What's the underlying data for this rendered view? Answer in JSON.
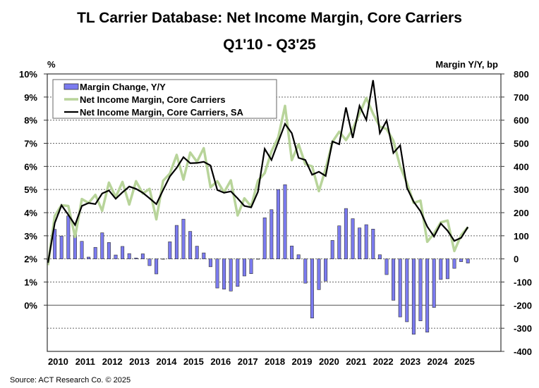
{
  "chart_data": {
    "type": "bar+line",
    "title": "TL Carrier Database: Net Income Margin, Core Carriers",
    "subtitle": "Q1'10 - Q3'25",
    "ylabel_left": "%",
    "ylabel_right": "Margin Y/Y, bp",
    "ylim_left": [
      -2,
      10
    ],
    "ylim_right": [
      -400,
      800
    ],
    "left_ticks": [
      "10%",
      "9%",
      "8%",
      "7%",
      "6%",
      "5%",
      "4%",
      "3%",
      "2%",
      "1%",
      "0%"
    ],
    "left_tick_values": [
      10,
      9,
      8,
      7,
      6,
      5,
      4,
      3,
      2,
      1,
      0
    ],
    "right_ticks": [
      "800",
      "700",
      "600",
      "500",
      "400",
      "300",
      "200",
      "100",
      "0",
      "-100",
      "-200",
      "-300",
      "-400"
    ],
    "right_tick_values": [
      800,
      700,
      600,
      500,
      400,
      300,
      200,
      100,
      0,
      -100,
      -200,
      -300,
      -400
    ],
    "x_labels": [
      "2010",
      "2011",
      "2012",
      "2013",
      "2014",
      "2015",
      "2016",
      "2017",
      "2018",
      "2019",
      "2020",
      "2021",
      "2022",
      "2023",
      "2024",
      "2025"
    ],
    "grid": "dashed horizontal",
    "legend_position": "top-left",
    "series": [
      {
        "name": "Margin Change, Y/Y",
        "type": "bar",
        "axis": "right",
        "color": "#7b7bf0",
        "values": [
          0,
          128,
          99,
          186,
          120,
          76,
          8,
          50,
          113,
          71,
          17,
          54,
          23,
          4,
          22,
          -29,
          -65,
          0,
          74,
          145,
          172,
          119,
          55,
          26,
          -34,
          -126,
          -131,
          -139,
          -119,
          -74,
          -64,
          0,
          178,
          213,
          300,
          321,
          56,
          18,
          -105,
          -256,
          -133,
          -96,
          80,
          143,
          218,
          174,
          134,
          148,
          129,
          18,
          -68,
          -179,
          -251,
          -272,
          -326,
          -268,
          -317,
          -210,
          -89,
          -86,
          -41,
          -12,
          -18
        ]
      },
      {
        "name": "Net Income Margin, Core Carriers",
        "type": "line",
        "axis": "left",
        "color": "#b8d49a",
        "values": [
          1.73,
          3.86,
          4.32,
          4.29,
          2.95,
          4.59,
          4.42,
          4.77,
          4.08,
          5.3,
          4.67,
          5.33,
          4.35,
          5.36,
          4.83,
          5.03,
          3.71,
          5.38,
          5.69,
          6.5,
          5.43,
          6.6,
          6.2,
          6.79,
          5.1,
          5.36,
          4.88,
          5.4,
          3.88,
          4.62,
          4.27,
          5.38,
          5.71,
          6.65,
          7.26,
          8.62,
          6.27,
          6.96,
          6.1,
          6.0,
          4.93,
          5.89,
          7.06,
          7.5,
          7.14,
          7.62,
          8.28,
          8.96,
          8.28,
          7.72,
          7.62,
          7.11,
          6.0,
          5.28,
          4.42,
          4.52,
          2.74,
          3.1,
          3.58,
          3.66,
          2.34,
          3.03,
          3.37
        ]
      },
      {
        "name": "Net Income Margin, Core Carriers, SA",
        "type": "line",
        "axis": "left",
        "color": "#000000",
        "values": [
          1.83,
          3.55,
          4.32,
          3.91,
          3.47,
          4.29,
          4.42,
          4.37,
          4.83,
          4.96,
          4.6,
          4.88,
          5.13,
          5.03,
          4.86,
          4.62,
          4.37,
          4.98,
          5.57,
          5.94,
          6.4,
          6.14,
          6.15,
          6.2,
          6.04,
          4.98,
          4.86,
          4.92,
          4.62,
          4.29,
          4.23,
          4.9,
          6.76,
          6.28,
          7.06,
          7.84,
          7.44,
          6.37,
          6.28,
          5.64,
          5.77,
          5.59,
          7.08,
          6.96,
          8.55,
          7.23,
          8.62,
          8.01,
          9.73,
          7.44,
          7.98,
          6.58,
          6.91,
          5.08,
          4.47,
          4.06,
          3.4,
          2.97,
          3.53,
          3.22,
          2.78,
          2.91,
          3.38
        ]
      }
    ]
  },
  "source": "Source: ACT Research Co. © 2025"
}
